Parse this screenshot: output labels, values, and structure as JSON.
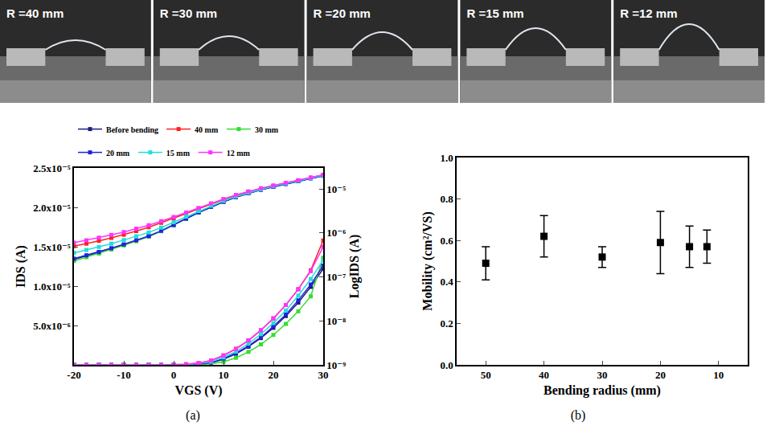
{
  "photos": {
    "labels": [
      "R =40 mm",
      "R =30 mm",
      "R =20 mm",
      "R =15 mm",
      "R =12 mm"
    ]
  },
  "chart_data": [
    {
      "type": "line",
      "caption": "(a)",
      "x_label": "VGS (V)",
      "y_label": "IDS (A)",
      "y2_label": "LogIDS (A)",
      "x": [
        -20,
        -17.5,
        -15,
        -12.5,
        -10,
        -7.5,
        -5,
        -2.5,
        0,
        2.5,
        5,
        7.5,
        10,
        12.5,
        15,
        17.5,
        20,
        22.5,
        25,
        27.5,
        30
      ],
      "xlim": [
        -20,
        30
      ],
      "xticks": [
        -20,
        -10,
        0,
        10,
        20,
        30
      ],
      "ylim": [
        0,
        2.5e-05
      ],
      "yticks": [
        {
          "value": 5e-06,
          "label": "5.0x10⁻⁶"
        },
        {
          "value": 1e-05,
          "label": "1.0x10⁻⁵"
        },
        {
          "value": 1.5e-05,
          "label": "1.5x10⁻⁵"
        },
        {
          "value": 2e-05,
          "label": "2.0x10⁻⁵"
        },
        {
          "value": 2.5e-05,
          "label": "2.5x10⁻⁵"
        }
      ],
      "y2lim": [
        1e-09,
        3e-05
      ],
      "y2ticks": [
        {
          "value": 1e-09,
          "label": "10⁻⁹"
        },
        {
          "value": 1e-08,
          "label": "10⁻⁸"
        },
        {
          "value": 1e-07,
          "label": "10⁻⁷"
        },
        {
          "value": 1e-06,
          "label": "10⁻⁶"
        },
        {
          "value": 1e-05,
          "label": "10⁻⁵"
        }
      ],
      "log": "y2",
      "legend": "top",
      "marker": "square",
      "series": [
        {
          "name": "Before bending",
          "color": "#1f1f7a",
          "values": [
            0,
            0,
            0,
            0,
            0,
            0,
            0,
            0,
            0,
            2e-08,
            8e-08,
            2.5e-07,
            7e-07,
            1.4e-06,
            2.3e-06,
            3.4e-06,
            4.7e-06,
            6.2e-06,
            7.9e-06,
            9.9e-06,
            1.22e-05
          ]
        },
        {
          "name": "40 mm",
          "color": "#ff2020",
          "values": [
            0,
            0,
            0,
            0,
            0,
            0,
            0,
            0,
            2e-08,
            8e-08,
            2.2e-07,
            5.5e-07,
            1.2e-06,
            2.05e-06,
            3.1e-06,
            4.4e-06,
            5.9e-06,
            7.6e-06,
            9.6e-06,
            1.2e-05,
            1.58e-05
          ]
        },
        {
          "name": "30 mm",
          "color": "#33dd33",
          "values": [
            0,
            0,
            0,
            0,
            0,
            0,
            0,
            0,
            0,
            1e-08,
            4e-08,
            1.3e-07,
            3.8e-07,
            9e-07,
            1.65e-06,
            2.6e-06,
            3.8e-06,
            5.2e-06,
            6.8e-06,
            8.7e-06,
            1.36e-05
          ]
        },
        {
          "name": "20 mm",
          "color": "#2222dd",
          "values": [
            0,
            0,
            0,
            0,
            0,
            0,
            0,
            0,
            0,
            3e-08,
            1e-07,
            3e-07,
            8e-07,
            1.5e-06,
            2.4e-06,
            3.5e-06,
            4.9e-06,
            6.4e-06,
            8.2e-06,
            1.02e-05,
            1.26e-05
          ]
        },
        {
          "name": "15 mm",
          "color": "#22dddd",
          "values": [
            0,
            0,
            0,
            0,
            0,
            0,
            0,
            0,
            1e-08,
            5e-08,
            1.5e-07,
            4e-07,
            9.5e-07,
            1.7e-06,
            2.7e-06,
            3.9e-06,
            5.3e-06,
            6.9e-06,
            8.8e-06,
            1.09e-05,
            1.33e-05
          ]
        },
        {
          "name": "12 mm",
          "color": "#ff33ff",
          "values": [
            0,
            0,
            0,
            0,
            0,
            0,
            0,
            0,
            2e-08,
            8e-08,
            2.2e-07,
            5.5e-07,
            1.2e-06,
            2e-06,
            3.1e-06,
            4.4e-06,
            5.9e-06,
            7.6e-06,
            9.6e-06,
            1.19e-05,
            1.5e-05
          ]
        },
        {
          "name": "Before bending",
          "color": "#1f1f7a",
          "axis": "y2",
          "values": [
            2.5e-07,
            3e-07,
            3.6e-07,
            4.4e-07,
            5.4e-07,
            6.7e-07,
            8.4e-07,
            1.1e-06,
            1.5e-06,
            2.1e-06,
            2.9e-06,
            3.9e-06,
            5.1e-06,
            6.5e-06,
            8e-06,
            9.6e-06,
            1.12e-05,
            1.3e-05,
            1.5e-05,
            1.75e-05,
            2e-05
          ]
        },
        {
          "name": "40 mm",
          "color": "#ff2020",
          "axis": "y2",
          "values": [
            5e-07,
            5.7e-07,
            6.6e-07,
            7.7e-07,
            9.1e-07,
            1.1e-06,
            1.35e-06,
            1.7e-06,
            2.15e-06,
            2.75e-06,
            3.55e-06,
            4.55e-06,
            5.75e-06,
            7.1e-06,
            8.6e-06,
            1.02e-05,
            1.18e-05,
            1.36e-05,
            1.56e-05,
            1.8e-05,
            2.08e-05
          ]
        },
        {
          "name": "30 mm",
          "color": "#33dd33",
          "axis": "y2",
          "values": [
            2.3e-07,
            2.8e-07,
            3.4e-07,
            4.2e-07,
            5.2e-07,
            6.5e-07,
            8.3e-07,
            1.1e-06,
            1.5e-06,
            2.1e-06,
            2.9e-06,
            3.9e-06,
            5.1e-06,
            6.5e-06,
            8e-06,
            9.6e-06,
            1.13e-05,
            1.31e-05,
            1.51e-05,
            1.76e-05,
            2.02e-05
          ]
        },
        {
          "name": "20 mm",
          "color": "#2222dd",
          "axis": "y2",
          "values": [
            2.6e-07,
            3.1e-07,
            3.7e-07,
            4.5e-07,
            5.5e-07,
            6.8e-07,
            8.5e-07,
            1.12e-06,
            1.52e-06,
            2.12e-06,
            2.92e-06,
            3.92e-06,
            5.12e-06,
            6.52e-06,
            8.02e-06,
            9.62e-06,
            1.12e-05,
            1.3e-05,
            1.5e-05,
            1.75e-05,
            2e-05
          ]
        },
        {
          "name": "15 mm",
          "color": "#22dddd",
          "axis": "y2",
          "values": [
            3.5e-07,
            4.1e-07,
            4.8e-07,
            5.7e-07,
            6.9e-07,
            8.4e-07,
            1.03e-06,
            1.32e-06,
            1.75e-06,
            2.35e-06,
            3.15e-06,
            4.15e-06,
            5.35e-06,
            6.75e-06,
            8.25e-06,
            9.85e-06,
            1.15e-05,
            1.33e-05,
            1.53e-05,
            1.77e-05,
            2.03e-05
          ]
        },
        {
          "name": "12 mm",
          "color": "#ff33ff",
          "axis": "y2",
          "values": [
            6e-07,
            6.8e-07,
            7.8e-07,
            9e-07,
            1.05e-06,
            1.25e-06,
            1.5e-06,
            1.85e-06,
            2.3e-06,
            2.9e-06,
            3.7e-06,
            4.7e-06,
            5.9e-06,
            7.3e-06,
            8.8e-06,
            1.04e-05,
            1.2e-05,
            1.38e-05,
            1.58e-05,
            1.82e-05,
            2.1e-05
          ]
        }
      ]
    },
    {
      "type": "scatter",
      "caption": "(b)",
      "x_label": "Bending radius (mm)",
      "y_label": "Mobility (cm²/VS)",
      "x": [
        50,
        40,
        30,
        20,
        15,
        12
      ],
      "values": [
        0.49,
        0.62,
        0.52,
        0.59,
        0.57,
        0.57
      ],
      "errors": [
        0.08,
        0.1,
        0.05,
        0.15,
        0.1,
        0.08
      ],
      "xlim": [
        55,
        5
      ],
      "xticks": [
        50,
        40,
        30,
        20,
        10
      ],
      "ylim": [
        0,
        1.0
      ],
      "yticks": [
        {
          "value": 0,
          "label": "0.0"
        },
        0.2,
        0.4,
        0.6,
        0.8,
        {
          "value": 1.0,
          "label": "1.0"
        }
      ],
      "marker": "square",
      "color": "#000000"
    }
  ]
}
